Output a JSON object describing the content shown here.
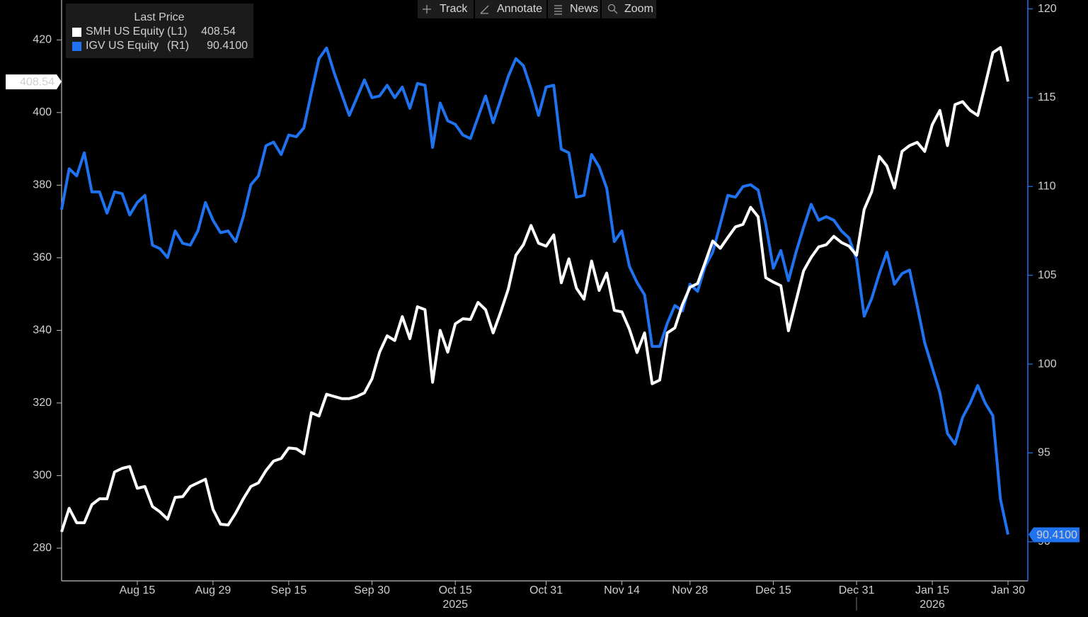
{
  "toolbar": [
    "Track",
    "Annotate",
    "News",
    "Zoom"
  ],
  "chart_data": {
    "type": "line",
    "legend_title": "Last Price",
    "categories": [
      null,
      null,
      null,
      null,
      null,
      null,
      null,
      null,
      null,
      null,
      "Aug 15",
      null,
      null,
      null,
      null,
      null,
      null,
      null,
      null,
      null,
      "Aug 29",
      null,
      null,
      null,
      null,
      null,
      null,
      null,
      null,
      null,
      "Sep 15",
      null,
      null,
      null,
      null,
      null,
      null,
      null,
      null,
      null,
      null,
      "Sep 30",
      null,
      null,
      null,
      null,
      null,
      null,
      null,
      null,
      null,
      null,
      "Oct 15",
      null,
      null,
      null,
      null,
      null,
      null,
      null,
      null,
      null,
      null,
      null,
      "Oct 31",
      null,
      null,
      null,
      null,
      null,
      null,
      null,
      null,
      null,
      "Nov 14",
      null,
      null,
      null,
      null,
      null,
      null,
      null,
      null,
      "Nov 28",
      null,
      null,
      null,
      null,
      null,
      null,
      null,
      null,
      null,
      null,
      "Dec 15",
      null,
      null,
      null,
      null,
      null,
      null,
      null,
      null,
      null,
      null,
      "Dec 31",
      null,
      null,
      null,
      null,
      null,
      null,
      null,
      null,
      null,
      "Jan 15",
      null,
      null,
      null,
      null,
      null,
      null,
      null,
      null,
      null,
      "Jan 30"
    ],
    "year_labels": [
      {
        "under": "Oct 15",
        "label": "2025"
      },
      {
        "under": "Jan 15",
        "label": "2026"
      }
    ],
    "ylim": [
      271,
      431
    ],
    "yticks": [
      280,
      300,
      320,
      340,
      360,
      380,
      400,
      420
    ],
    "y2lim": [
      87.8,
      120.5
    ],
    "y2ticks": [
      90,
      95,
      100,
      105,
      110,
      115,
      120
    ],
    "series": [
      {
        "name": "SMH US Equity",
        "axis_tag": "(L1)",
        "last_price": "408.54",
        "color": "#ffffff",
        "axis": "y",
        "values": [
          284.5,
          291,
          287,
          287,
          292,
          293.6,
          293.6,
          301,
          302,
          302.5,
          296.5,
          297,
          291.5,
          290,
          288,
          294,
          294.2,
          297,
          298,
          299,
          290.7,
          286.6,
          286.4,
          289.7,
          293.6,
          297,
          298,
          301.4,
          304,
          304.7,
          307.6,
          307.4,
          306,
          317.3,
          316.4,
          322.4,
          321.8,
          321.2,
          321.2,
          321.8,
          322.8,
          326.7,
          334,
          338.5,
          337.2,
          343.8,
          337.7,
          346.5,
          345.7,
          325.7,
          340,
          334,
          341.8,
          343.2,
          343,
          347.7,
          345.7,
          339.3,
          345.1,
          351.4,
          360.7,
          363.6,
          368.9,
          364,
          363.2,
          366.3,
          353.1,
          359.7,
          351.6,
          348.6,
          359.1,
          351,
          355.8,
          345.5,
          345.1,
          340.3,
          333.9,
          339.3,
          325.3,
          326.3,
          339.3,
          340.7,
          347.1,
          351.9,
          352.9,
          358.7,
          364.6,
          362.6,
          365.6,
          368.5,
          369.2,
          373.9,
          371.3,
          354.5,
          353.3,
          352.3,
          339.9,
          348.1,
          356.4,
          360.1,
          363,
          363.6,
          365.9,
          364.2,
          363.2,
          360.7,
          373.3,
          378.2,
          387.9,
          385.3,
          379.2,
          389.3,
          390.9,
          391.8,
          389.3,
          396.7,
          400.6,
          390.9,
          402.2,
          403,
          400.6,
          399.2,
          407.7,
          416.5,
          417.9,
          408.54
        ]
      },
      {
        "name": "IGV US Equity",
        "axis_tag": "(R1)",
        "last_price": "90.4100",
        "color": "#1f72f0",
        "axis": "y2",
        "values": [
          108.7,
          111.0,
          110.6,
          111.9,
          109.7,
          109.7,
          108.5,
          109.7,
          109.6,
          108.4,
          109.1,
          109.5,
          106.7,
          106.5,
          106.0,
          107.5,
          106.8,
          106.7,
          107.5,
          109.1,
          108.1,
          107.4,
          107.5,
          106.9,
          108.3,
          110.1,
          110.6,
          112.3,
          112.5,
          111.8,
          112.9,
          112.8,
          113.3,
          115.3,
          117.2,
          117.8,
          116.4,
          115.2,
          114.0,
          115.0,
          116.0,
          115.0,
          115.1,
          115.7,
          115.0,
          115.6,
          114.4,
          115.8,
          115.7,
          112.2,
          114.7,
          113.7,
          113.5,
          112.9,
          112.7,
          113.9,
          115.1,
          113.6,
          114.9,
          116.2,
          117.2,
          116.8,
          115.5,
          114.0,
          115.6,
          115.7,
          112.1,
          111.9,
          109.4,
          109.5,
          111.8,
          111.1,
          109.9,
          106.9,
          107.5,
          105.5,
          104.6,
          103.9,
          101.0,
          101.0,
          102.3,
          103.3,
          103.0,
          104.5,
          104.1,
          105.5,
          106.3,
          107.9,
          109.5,
          109.4,
          110.0,
          110.1,
          109.8,
          107.9,
          105.4,
          106.4,
          104.7,
          106.3,
          107.7,
          109.0,
          108.1,
          108.3,
          108.1,
          107.5,
          107.1,
          105.9,
          102.7,
          103.7,
          105.1,
          106.3,
          104.5,
          105.1,
          105.3,
          103.3,
          101.2,
          99.8,
          98.4,
          96.1,
          95.5,
          97.0,
          97.8,
          98.8,
          97.8,
          97.1,
          92.4,
          90.41
        ]
      }
    ]
  }
}
